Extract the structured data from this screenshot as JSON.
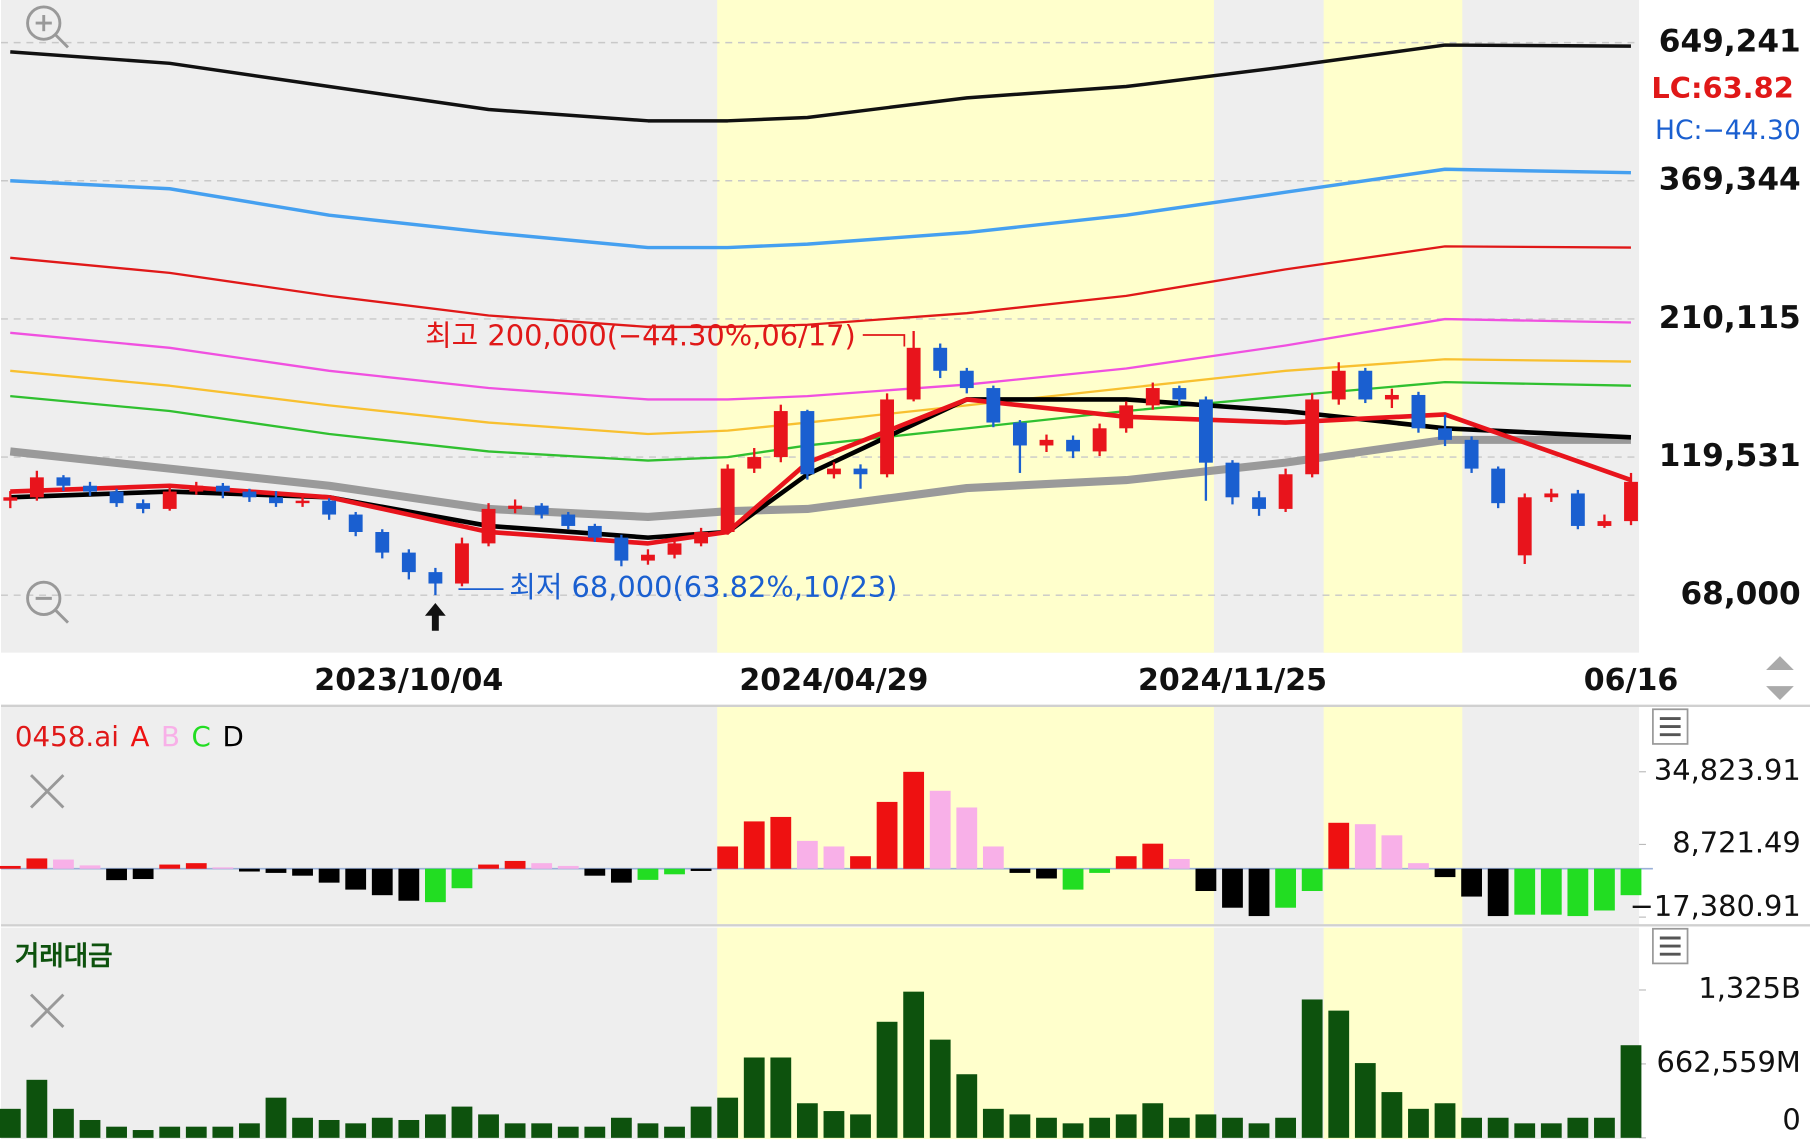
{
  "chart_data": [
    {
      "type": "candlestick",
      "log_scale": true,
      "grid": true,
      "up_color": "#e8141c",
      "down_color": "#1a5fd0",
      "categories": [
        null,
        null,
        null,
        null,
        null,
        null,
        null,
        null,
        null,
        null,
        null,
        null,
        null,
        null,
        null,
        "2023/10/04",
        null,
        null,
        null,
        null,
        null,
        null,
        null,
        null,
        null,
        null,
        null,
        null,
        null,
        null,
        null,
        "2024/04/29",
        null,
        null,
        null,
        null,
        null,
        null,
        null,
        null,
        null,
        null,
        null,
        null,
        null,
        null,
        "2024/11/25",
        null,
        null,
        null,
        null,
        null,
        null,
        null,
        null,
        null,
        null,
        null,
        null,
        null,
        null,
        "06/16"
      ],
      "open": [
        100000,
        101400,
        110000,
        106300,
        103800,
        99000,
        96700,
        103800,
        106300,
        103800,
        101400,
        99000,
        100000,
        94500,
        88000,
        80900,
        74700,
        71300,
        84000,
        96700,
        98000,
        94500,
        90200,
        86000,
        78300,
        80200,
        84000,
        88000,
        114000,
        119500,
        144200,
        111400,
        114000,
        111400,
        151200,
        186700,
        170000,
        158400,
        137600,
        125300,
        128200,
        122300,
        134400,
        147600,
        158400,
        151200,
        116800,
        101400,
        96700,
        111400,
        151200,
        170000,
        151200,
        154000,
        134400,
        128200,
        114000,
        80000,
        101400,
        103000,
        90200,
        92000
      ],
      "high": [
        104000,
        113000,
        111000,
        108000,
        105000,
        100500,
        105500,
        108000,
        107500,
        105000,
        104000,
        103000,
        101000,
        95500,
        89000,
        82000,
        76000,
        86000,
        99000,
        100500,
        99000,
        95500,
        91000,
        87000,
        82000,
        85500,
        89500,
        116000,
        124000,
        148000,
        145000,
        117000,
        116000,
        155000,
        200000,
        190000,
        172000,
        160000,
        139000,
        131000,
        130500,
        137000,
        150000,
        162000,
        160000,
        153000,
        118000,
        104000,
        114000,
        155000,
        176000,
        172000,
        158000,
        156000,
        142000,
        130000,
        115000,
        103000,
        105000,
        104500,
        94500,
        112000
      ],
      "low": [
        97000,
        100000,
        104000,
        102000,
        97500,
        95000,
        96000,
        102500,
        101000,
        99500,
        97500,
        97500,
        92500,
        86500,
        79000,
        72500,
        68000,
        70500,
        83000,
        95000,
        93000,
        89000,
        84500,
        76500,
        77000,
        79000,
        83000,
        87000,
        112000,
        117000,
        109000,
        109500,
        105000,
        110000,
        150000,
        165000,
        155000,
        135000,
        112000,
        122000,
        119000,
        120000,
        132000,
        145000,
        148000,
        100000,
        98500,
        94000,
        95500,
        110000,
        148000,
        149000,
        146000,
        132000,
        125000,
        112000,
        97000,
        77200,
        99500,
        89000,
        89500,
        90500
      ],
      "close": [
        101400,
        110000,
        106300,
        103800,
        99000,
        96700,
        103800,
        106300,
        103800,
        101400,
        99000,
        100000,
        94500,
        88000,
        80900,
        74700,
        71300,
        84000,
        96700,
        98000,
        94500,
        90200,
        86000,
        78300,
        80200,
        84000,
        88000,
        114000,
        119500,
        144200,
        111400,
        114000,
        111400,
        151200,
        186700,
        170000,
        158400,
        137600,
        125300,
        128200,
        122300,
        134400,
        147600,
        158400,
        151200,
        116800,
        101400,
        96700,
        111400,
        151200,
        170000,
        151200,
        154000,
        134400,
        128200,
        114000,
        99000,
        101400,
        103000,
        90200,
        92000,
        108000
      ],
      "lines": [
        {
          "color": "#111111",
          "width": 3,
          "x": [
            0,
            6,
            12,
            18,
            24,
            27,
            30,
            36,
            42,
            48,
            54,
            61
          ],
          "values": [
            625300,
            596600,
            542800,
            494100,
            471700,
            471700,
            478300,
            518100,
            542800,
            588200,
            642700,
            640100
          ]
        },
        {
          "color": "#45a0f0",
          "width": 3,
          "x": [
            0,
            6,
            12,
            18,
            24,
            27,
            30,
            36,
            42,
            48,
            54,
            61
          ],
          "values": [
            369344,
            357400,
            320800,
            298900,
            281200,
            281200,
            285200,
            298900,
            320800,
            352400,
            387100,
            381700
          ]
        },
        {
          "color": "#e01818",
          "width": 2,
          "x": [
            0,
            6,
            12,
            18,
            24,
            27,
            30,
            36,
            42,
            48,
            54,
            61
          ],
          "values": [
            269600,
            253600,
            230900,
            213100,
            203300,
            203300,
            205200,
            215100,
            230900,
            257200,
            282500,
            281200
          ]
        },
        {
          "color": "#f050e0",
          "width": 2,
          "x": [
            0,
            6,
            12,
            18,
            24,
            27,
            30,
            36,
            42,
            48,
            54,
            61
          ],
          "values": [
            198500,
            186700,
            170000,
            158400,
            151200,
            151200,
            153300,
            160700,
            171600,
            188500,
            210000,
            207000
          ]
        },
        {
          "color": "#f8c030",
          "width": 2,
          "x": [
            0,
            6,
            12,
            18,
            24,
            27,
            30,
            36,
            42,
            48,
            54,
            61
          ],
          "values": [
            170000,
            159900,
            147600,
            137600,
            131300,
            133100,
            137600,
            147600,
            158400,
            170000,
            178200,
            176500
          ]
        },
        {
          "color": "#30c030",
          "width": 2,
          "x": [
            0,
            6,
            12,
            18,
            24,
            27,
            30,
            36,
            42,
            48,
            54,
            61
          ],
          "values": [
            153300,
            144200,
            131300,
            122300,
            117800,
            119500,
            125300,
            134400,
            144200,
            153300,
            162300,
            159900
          ]
        },
        {
          "color": "#9a9a9a",
          "width": 7,
          "x": [
            0,
            6,
            12,
            18,
            24,
            27,
            30,
            36,
            42,
            48,
            54,
            61
          ],
          "values": [
            122300,
            114000,
            106300,
            96700,
            93600,
            95800,
            96700,
            105300,
            108800,
            116800,
            128200,
            128200
          ]
        },
        {
          "color": "#000000",
          "width": 4,
          "x": [
            0,
            6,
            12,
            18,
            24,
            27,
            30,
            36,
            42,
            48,
            54,
            61
          ],
          "values": [
            101400,
            103800,
            101400,
            90200,
            86000,
            88000,
            111400,
            151200,
            151200,
            144200,
            134400,
            129500
          ]
        },
        {
          "color": "#e8141c",
          "width": 4,
          "x": [
            0,
            6,
            12,
            18,
            24,
            27,
            30,
            36,
            42,
            48,
            54,
            61
          ],
          "values": [
            103800,
            106300,
            101400,
            88000,
            84000,
            88000,
            116800,
            151200,
            140900,
            137600,
            142200,
            108800
          ]
        }
      ],
      "ylim": [
        53760,
        772700
      ],
      "yticks": [
        {
          "value": 68000,
          "label": "68,000"
        },
        {
          "value": 119531,
          "label": "119,531"
        },
        {
          "value": 210115,
          "label": "210,115"
        },
        {
          "value": 369344,
          "label": "369,344"
        },
        {
          "value": 649241,
          "label": "649,241"
        }
      ],
      "annotations": {
        "high": "최고 200,000(−44.30%,06/17)",
        "low": "최저 68,000(63.82%,10/23)",
        "lc": "LC:63.82",
        "hc": "HC:−44.30"
      }
    },
    {
      "type": "bar",
      "title": "0458.ai",
      "series": [
        {
          "name": "A",
          "color": "#ee1111",
          "values": [
            1000,
            3700,
            null,
            null,
            null,
            null,
            1500,
            2000,
            null,
            null,
            null,
            null,
            null,
            null,
            null,
            null,
            null,
            null,
            1500,
            2800,
            null,
            null,
            null,
            null,
            null,
            null,
            null,
            8000,
            17000,
            18600,
            null,
            null,
            4500,
            24000,
            34800,
            null,
            null,
            null,
            null,
            null,
            null,
            null,
            4500,
            9000,
            null,
            null,
            null,
            null,
            null,
            null,
            16500,
            null,
            null,
            null,
            null,
            null,
            null,
            null,
            null,
            null,
            null,
            null
          ]
        },
        {
          "name": "B",
          "color": "#f8b0e8",
          "values": [
            null,
            null,
            3300,
            1200,
            null,
            null,
            null,
            null,
            500,
            null,
            null,
            null,
            null,
            null,
            null,
            null,
            null,
            null,
            null,
            null,
            2000,
            1000,
            null,
            null,
            null,
            null,
            null,
            null,
            null,
            null,
            10000,
            8000,
            null,
            null,
            null,
            28000,
            22000,
            8000,
            null,
            null,
            null,
            null,
            null,
            null,
            3500,
            null,
            null,
            null,
            null,
            null,
            null,
            16000,
            12000,
            2000,
            null,
            null,
            null,
            null,
            null,
            null,
            null,
            null
          ]
        },
        {
          "name": "C",
          "color": "#22dd22",
          "values": [
            null,
            null,
            null,
            null,
            null,
            null,
            null,
            null,
            null,
            null,
            null,
            null,
            null,
            null,
            null,
            null,
            -12000,
            -7000,
            null,
            null,
            null,
            null,
            null,
            null,
            -4000,
            -2000,
            null,
            null,
            null,
            null,
            null,
            null,
            null,
            null,
            null,
            null,
            null,
            null,
            null,
            null,
            -7500,
            -1500,
            null,
            null,
            null,
            null,
            null,
            null,
            -14000,
            -8000,
            null,
            null,
            null,
            null,
            null,
            null,
            null,
            -16500,
            -16500,
            -17000,
            -15000,
            -9500
          ]
        },
        {
          "name": "D",
          "color": "#000000",
          "values": [
            null,
            null,
            null,
            null,
            -4100,
            -3700,
            null,
            null,
            null,
            -1000,
            -1500,
            -2500,
            -5000,
            -7500,
            -9500,
            -11500,
            null,
            null,
            null,
            null,
            null,
            null,
            -2500,
            -5000,
            null,
            null,
            -800,
            null,
            null,
            null,
            null,
            null,
            null,
            null,
            null,
            null,
            null,
            null,
            -1500,
            -3500,
            null,
            null,
            null,
            null,
            null,
            -8000,
            -14000,
            -17000,
            null,
            null,
            null,
            null,
            null,
            null,
            -3000,
            -10000,
            -17000,
            null,
            null,
            null,
            null,
            null
          ]
        }
      ],
      "ylim": [
        -19900,
        58100
      ],
      "yticks": [
        {
          "value": -17380.91,
          "label": "−17,380.91"
        },
        {
          "value": 8721.49,
          "label": "8,721.49"
        },
        {
          "value": 34823.91,
          "label": "34,823.91"
        }
      ]
    },
    {
      "type": "bar",
      "title": "거래대금",
      "color": "#0d520d",
      "values": [
        260000000000.0,
        520000000000.0,
        260000000000.0,
        160000000000.0,
        100000000000.0,
        70000000000.0,
        100000000000.0,
        100000000000.0,
        100000000000.0,
        130000000000.0,
        360000000000.0,
        180000000000.0,
        160000000000.0,
        130000000000.0,
        180000000000.0,
        160000000000.0,
        210000000000.0,
        280000000000.0,
        210000000000.0,
        130000000000.0,
        130000000000.0,
        100000000000.0,
        100000000000.0,
        180000000000.0,
        130000000000.0,
        100000000000.0,
        280000000000.0,
        360000000000.0,
        720000000000.0,
        720000000000.0,
        310000000000.0,
        240000000000.0,
        210000000000.0,
        1040000000000.0,
        1310000000000.0,
        880000000000.0,
        570000000000.0,
        260000000000.0,
        210000000000.0,
        180000000000.0,
        130000000000.0,
        180000000000.0,
        210000000000.0,
        310000000000.0,
        180000000000.0,
        210000000000.0,
        180000000000.0,
        130000000000.0,
        180000000000.0,
        1240000000000.0,
        1140000000000.0,
        670000000000.0,
        410000000000.0,
        260000000000.0,
        310000000000.0,
        180000000000.0,
        180000000000.0,
        130000000000.0,
        130000000000.0,
        180000000000.0,
        180000000000.0,
        830000000000.0
      ],
      "ylim": [
        0,
        1884000000000.0
      ],
      "yticks": [
        {
          "value": 0,
          "label": "0"
        },
        {
          "value": 662559000000.0,
          "label": "662,559M"
        },
        {
          "value": 1325000000000.0,
          "label": "1,325B"
        }
      ]
    }
  ]
}
